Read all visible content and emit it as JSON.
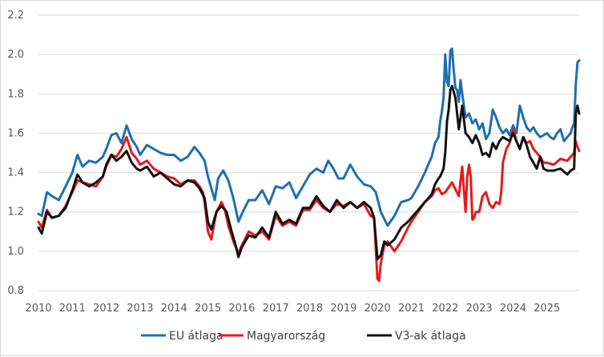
{
  "chart_data": {
    "type": "line",
    "title": "",
    "xlabel": "",
    "ylabel": "",
    "xlim": [
      2010.0,
      2025.95
    ],
    "ylim": [
      0.8,
      2.2
    ],
    "y_ticks": [
      "0.8",
      "1.0",
      "1.2",
      "1.4",
      "1.6",
      "1.8",
      "2.0",
      "2.2"
    ],
    "x_ticks": [
      "2010",
      "2011",
      "2012",
      "2013",
      "2014",
      "2015",
      "2016",
      "2017",
      "2018",
      "2019",
      "2020",
      "2021",
      "2022",
      "2023",
      "2024",
      "2025"
    ],
    "grid": "horizontal",
    "legend_position": "bottom",
    "series": [
      {
        "name": "EU átlaga",
        "color": "#1f6fb0",
        "x": [
          2010.0,
          2010.1,
          2010.25,
          2010.4,
          2010.6,
          2010.8,
          2011.0,
          2011.15,
          2011.3,
          2011.5,
          2011.7,
          2011.9,
          2012.0,
          2012.15,
          2012.3,
          2012.45,
          2012.6,
          2012.75,
          2012.9,
          2013.0,
          2013.2,
          2013.4,
          2013.6,
          2013.8,
          2014.0,
          2014.2,
          2014.4,
          2014.6,
          2014.75,
          2014.9,
          2015.0,
          2015.1,
          2015.2,
          2015.3,
          2015.45,
          2015.6,
          2015.75,
          2015.9,
          2016.0,
          2016.2,
          2016.4,
          2016.6,
          2016.8,
          2017.0,
          2017.2,
          2017.4,
          2017.6,
          2017.8,
          2018.0,
          2018.2,
          2018.4,
          2018.55,
          2018.7,
          2018.85,
          2019.0,
          2019.2,
          2019.4,
          2019.6,
          2019.8,
          2019.95,
          2020.1,
          2020.3,
          2020.5,
          2020.7,
          2020.9,
          2021.0,
          2021.2,
          2021.4,
          2021.6,
          2021.7,
          2021.8,
          2021.85,
          2021.9,
          2021.95,
          2022.0,
          2022.05,
          2022.1,
          2022.15,
          2022.2,
          2022.25,
          2022.3,
          2022.35,
          2022.4,
          2022.45,
          2022.5,
          2022.6,
          2022.7,
          2022.8,
          2022.9,
          2023.0,
          2023.1,
          2023.2,
          2023.3,
          2023.4,
          2023.5,
          2023.6,
          2023.7,
          2023.8,
          2023.9,
          2024.0,
          2024.1,
          2024.2,
          2024.3,
          2024.4,
          2024.5,
          2024.6,
          2024.7,
          2024.8,
          2024.9,
          2025.0,
          2025.1,
          2025.2,
          2025.3,
          2025.4,
          2025.5,
          2025.6,
          2025.7,
          2025.75,
          2025.8,
          2025.85,
          2025.9,
          2025.95
        ],
        "values": [
          1.19,
          1.18,
          1.3,
          1.28,
          1.26,
          1.33,
          1.4,
          1.49,
          1.43,
          1.46,
          1.45,
          1.48,
          1.52,
          1.59,
          1.6,
          1.55,
          1.64,
          1.57,
          1.53,
          1.49,
          1.54,
          1.52,
          1.5,
          1.49,
          1.49,
          1.46,
          1.48,
          1.53,
          1.5,
          1.46,
          1.38,
          1.32,
          1.26,
          1.37,
          1.41,
          1.36,
          1.27,
          1.15,
          1.19,
          1.26,
          1.26,
          1.31,
          1.24,
          1.33,
          1.32,
          1.35,
          1.27,
          1.33,
          1.39,
          1.42,
          1.4,
          1.46,
          1.42,
          1.37,
          1.37,
          1.44,
          1.38,
          1.34,
          1.33,
          1.3,
          1.2,
          1.13,
          1.18,
          1.25,
          1.26,
          1.27,
          1.33,
          1.4,
          1.48,
          1.55,
          1.58,
          1.66,
          1.71,
          1.78,
          2.0,
          1.86,
          1.84,
          2.02,
          2.03,
          1.92,
          1.83,
          1.82,
          1.76,
          1.87,
          1.8,
          1.68,
          1.7,
          1.65,
          1.67,
          1.62,
          1.65,
          1.57,
          1.6,
          1.72,
          1.68,
          1.63,
          1.6,
          1.62,
          1.59,
          1.64,
          1.6,
          1.74,
          1.68,
          1.63,
          1.61,
          1.63,
          1.6,
          1.58,
          1.59,
          1.6,
          1.58,
          1.57,
          1.6,
          1.62,
          1.56,
          1.58,
          1.6,
          1.63,
          1.65,
          1.85,
          1.96,
          1.97
        ]
      },
      {
        "name": "Magyarország",
        "color": "#e31a1c",
        "x": [
          2010.0,
          2010.1,
          2010.25,
          2010.4,
          2010.6,
          2010.8,
          2011.0,
          2011.15,
          2011.3,
          2011.5,
          2011.7,
          2011.9,
          2012.0,
          2012.15,
          2012.3,
          2012.45,
          2012.6,
          2012.75,
          2012.9,
          2013.0,
          2013.2,
          2013.4,
          2013.6,
          2013.8,
          2014.0,
          2014.2,
          2014.4,
          2014.6,
          2014.75,
          2014.85,
          2014.9,
          2015.0,
          2015.1,
          2015.25,
          2015.4,
          2015.5,
          2015.6,
          2015.75,
          2015.9,
          2016.0,
          2016.2,
          2016.4,
          2016.6,
          2016.8,
          2017.0,
          2017.2,
          2017.4,
          2017.6,
          2017.8,
          2018.0,
          2018.2,
          2018.4,
          2018.6,
          2018.8,
          2019.0,
          2019.2,
          2019.4,
          2019.6,
          2019.8,
          2019.9,
          2020.0,
          2020.05,
          2020.1,
          2020.2,
          2020.3,
          2020.5,
          2020.7,
          2020.9,
          2021.0,
          2021.2,
          2021.4,
          2021.6,
          2021.7,
          2021.8,
          2021.9,
          2022.0,
          2022.2,
          2022.4,
          2022.5,
          2022.6,
          2022.65,
          2022.7,
          2022.75,
          2022.8,
          2022.85,
          2022.9,
          2023.0,
          2023.1,
          2023.2,
          2023.3,
          2023.4,
          2023.5,
          2023.6,
          2023.65,
          2023.7,
          2023.8,
          2023.9,
          2024.0,
          2024.1,
          2024.2,
          2024.3,
          2024.4,
          2024.5,
          2024.6,
          2024.7,
          2024.8,
          2024.9,
          2025.0,
          2025.2,
          2025.4,
          2025.6,
          2025.7,
          2025.8,
          2025.85,
          2025.9,
          2025.95
        ],
        "values": [
          1.15,
          1.12,
          1.21,
          1.17,
          1.18,
          1.23,
          1.3,
          1.36,
          1.35,
          1.34,
          1.33,
          1.38,
          1.43,
          1.49,
          1.48,
          1.52,
          1.58,
          1.5,
          1.47,
          1.44,
          1.46,
          1.42,
          1.4,
          1.38,
          1.37,
          1.34,
          1.36,
          1.36,
          1.33,
          1.3,
          1.25,
          1.1,
          1.06,
          1.2,
          1.25,
          1.21,
          1.13,
          1.05,
          0.99,
          1.03,
          1.1,
          1.08,
          1.1,
          1.06,
          1.18,
          1.13,
          1.15,
          1.13,
          1.21,
          1.21,
          1.26,
          1.22,
          1.2,
          1.24,
          1.23,
          1.25,
          1.22,
          1.24,
          1.18,
          1.17,
          0.86,
          0.85,
          0.94,
          1.03,
          1.05,
          1.0,
          1.05,
          1.12,
          1.15,
          1.2,
          1.25,
          1.28,
          1.31,
          1.32,
          1.29,
          1.3,
          1.35,
          1.28,
          1.43,
          1.2,
          1.38,
          1.44,
          1.38,
          1.16,
          1.17,
          1.2,
          1.2,
          1.28,
          1.3,
          1.24,
          1.22,
          1.25,
          1.24,
          1.3,
          1.45,
          1.52,
          1.55,
          1.62,
          1.56,
          1.52,
          1.58,
          1.55,
          1.56,
          1.52,
          1.5,
          1.48,
          1.45,
          1.45,
          1.44,
          1.47,
          1.46,
          1.48,
          1.5,
          1.56,
          1.53,
          1.51
        ]
      },
      {
        "name": "V3-ak átlaga",
        "color": "#111111",
        "x": [
          2010.0,
          2010.1,
          2010.25,
          2010.4,
          2010.6,
          2010.8,
          2011.0,
          2011.15,
          2011.3,
          2011.5,
          2011.7,
          2011.9,
          2012.0,
          2012.15,
          2012.3,
          2012.45,
          2012.6,
          2012.75,
          2012.9,
          2013.0,
          2013.2,
          2013.4,
          2013.6,
          2013.8,
          2014.0,
          2014.2,
          2014.4,
          2014.6,
          2014.75,
          2014.9,
          2015.0,
          2015.1,
          2015.25,
          2015.4,
          2015.55,
          2015.7,
          2015.8,
          2015.9,
          2016.0,
          2016.2,
          2016.4,
          2016.6,
          2016.8,
          2017.0,
          2017.2,
          2017.4,
          2017.6,
          2017.8,
          2018.0,
          2018.2,
          2018.4,
          2018.6,
          2018.8,
          2019.0,
          2019.2,
          2019.4,
          2019.6,
          2019.8,
          2019.9,
          2020.0,
          2020.1,
          2020.2,
          2020.3,
          2020.5,
          2020.7,
          2020.9,
          2021.0,
          2021.2,
          2021.4,
          2021.6,
          2021.7,
          2021.8,
          2021.85,
          2021.9,
          2021.95,
          2022.0,
          2022.05,
          2022.1,
          2022.15,
          2022.2,
          2022.3,
          2022.4,
          2022.45,
          2022.5,
          2022.6,
          2022.7,
          2022.8,
          2022.9,
          2023.0,
          2023.1,
          2023.2,
          2023.3,
          2023.4,
          2023.5,
          2023.6,
          2023.7,
          2023.8,
          2023.9,
          2024.0,
          2024.1,
          2024.2,
          2024.3,
          2024.4,
          2024.5,
          2024.6,
          2024.7,
          2024.8,
          2024.9,
          2025.0,
          2025.2,
          2025.4,
          2025.6,
          2025.7,
          2025.8,
          2025.85,
          2025.9,
          2025.95
        ],
        "values": [
          1.12,
          1.09,
          1.2,
          1.17,
          1.18,
          1.22,
          1.31,
          1.39,
          1.35,
          1.33,
          1.35,
          1.38,
          1.44,
          1.49,
          1.46,
          1.48,
          1.51,
          1.45,
          1.42,
          1.41,
          1.43,
          1.38,
          1.4,
          1.37,
          1.34,
          1.33,
          1.36,
          1.35,
          1.32,
          1.27,
          1.15,
          1.11,
          1.2,
          1.23,
          1.2,
          1.1,
          1.04,
          0.97,
          1.02,
          1.08,
          1.07,
          1.12,
          1.07,
          1.2,
          1.14,
          1.16,
          1.14,
          1.22,
          1.22,
          1.28,
          1.23,
          1.2,
          1.26,
          1.22,
          1.25,
          1.22,
          1.25,
          1.22,
          1.17,
          0.96,
          0.98,
          1.05,
          1.03,
          1.06,
          1.12,
          1.15,
          1.17,
          1.21,
          1.25,
          1.29,
          1.34,
          1.37,
          1.38,
          1.4,
          1.42,
          1.5,
          1.66,
          1.72,
          1.82,
          1.84,
          1.78,
          1.62,
          1.68,
          1.74,
          1.6,
          1.58,
          1.55,
          1.59,
          1.55,
          1.49,
          1.5,
          1.48,
          1.55,
          1.52,
          1.56,
          1.58,
          1.57,
          1.56,
          1.6,
          1.56,
          1.52,
          1.58,
          1.54,
          1.48,
          1.45,
          1.42,
          1.48,
          1.42,
          1.41,
          1.41,
          1.42,
          1.39,
          1.41,
          1.42,
          1.7,
          1.74,
          1.7
        ]
      }
    ]
  }
}
